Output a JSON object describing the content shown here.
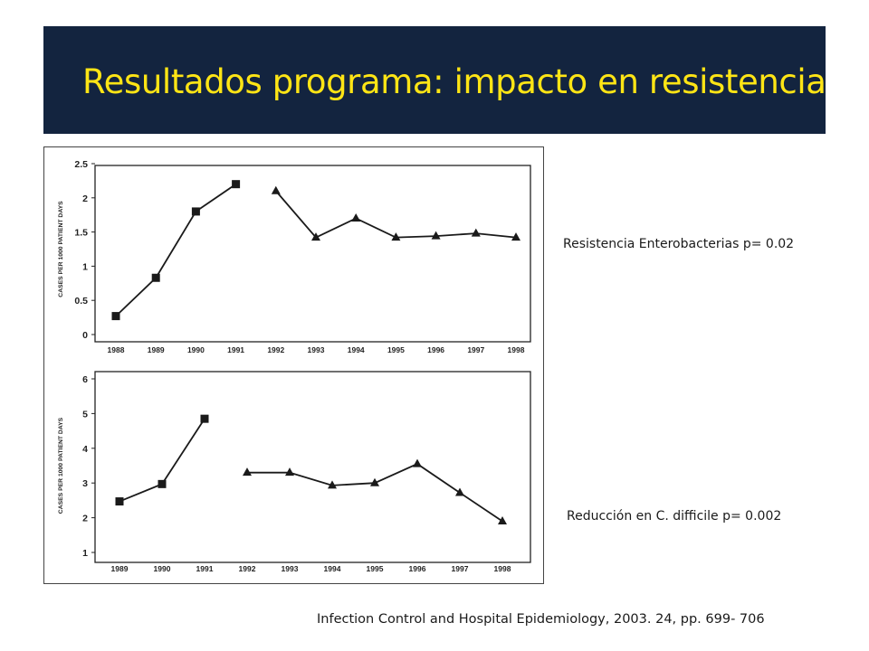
{
  "slide": {
    "title": "Resultados programa: impacto en resistencia",
    "annotation_top": "Resistencia Enterobacterias p= 0.02",
    "annotation_bottom": "Reducción en C. difficile p= 0.002",
    "citation": "Infection Control and Hospital Epidemiology, 2003. 24, pp. 699- 706"
  },
  "colors": {
    "banner_bg": "#13243f",
    "title_text": "#ffe515",
    "series_line": "#1a1a1a"
  },
  "chart_data": [
    {
      "type": "line",
      "title": "",
      "ylabel": "CASES PER 1000 PATIENT DAYS",
      "xlabel": "",
      "categories": [
        "1988",
        "1989",
        "1990",
        "1991",
        "1992",
        "1993",
        "1994",
        "1995",
        "1996",
        "1997",
        "1998"
      ],
      "ylim": [
        0,
        2.5
      ],
      "yticks": [
        "0",
        "0.5",
        "1",
        "1.5",
        "2",
        "2.5"
      ],
      "grid": false,
      "series": [
        {
          "marker": "square",
          "points": [
            {
              "x": "1988",
              "y": 0.27
            },
            {
              "x": "1989",
              "y": 0.83
            },
            {
              "x": "1990",
              "y": 1.8
            },
            {
              "x": "1991",
              "y": 2.2
            }
          ]
        },
        {
          "marker": "triangle",
          "points": [
            {
              "x": "1992",
              "y": 2.1
            },
            {
              "x": "1993",
              "y": 1.42
            },
            {
              "x": "1994",
              "y": 1.7
            },
            {
              "x": "1995",
              "y": 1.42
            },
            {
              "x": "1996",
              "y": 1.44
            },
            {
              "x": "1997",
              "y": 1.48
            },
            {
              "x": "1998",
              "y": 1.42
            }
          ]
        }
      ]
    },
    {
      "type": "line",
      "title": "",
      "ylabel": "CASES PER 1000 PATIENT DAYS",
      "xlabel": "",
      "categories": [
        "1989",
        "1990",
        "1991",
        "1992",
        "1993",
        "1994",
        "1995",
        "1996",
        "1997",
        "1998"
      ],
      "ylim": [
        1,
        6
      ],
      "yticks": [
        "1",
        "2",
        "3",
        "4",
        "5",
        "6"
      ],
      "grid": false,
      "series": [
        {
          "marker": "square",
          "points": [
            {
              "x": "1989",
              "y": 2.47
            },
            {
              "x": "1990",
              "y": 2.97
            },
            {
              "x": "1991",
              "y": 4.85
            }
          ]
        },
        {
          "marker": "triangle",
          "points": [
            {
              "x": "1992",
              "y": 3.3
            },
            {
              "x": "1993",
              "y": 3.3
            },
            {
              "x": "1994",
              "y": 2.93
            },
            {
              "x": "1995",
              "y": 3.0
            },
            {
              "x": "1996",
              "y": 3.55
            },
            {
              "x": "1997",
              "y": 2.72
            },
            {
              "x": "1998",
              "y": 1.9
            }
          ]
        }
      ]
    }
  ]
}
